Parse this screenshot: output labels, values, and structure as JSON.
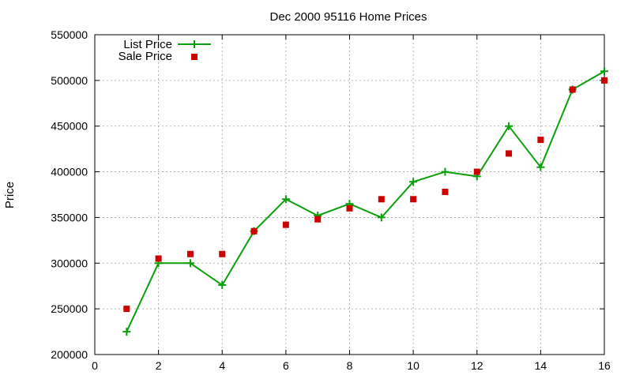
{
  "chart_data": {
    "type": "line",
    "title": "Dec 2000 95116 Home Prices",
    "xlabel": "",
    "ylabel": "Price",
    "xlim": [
      0,
      16
    ],
    "ylim": [
      200000,
      550000
    ],
    "xticks": [
      0,
      2,
      4,
      6,
      8,
      10,
      12,
      14,
      16
    ],
    "yticks": [
      200000,
      250000,
      300000,
      350000,
      400000,
      450000,
      500000,
      550000
    ],
    "grid": true,
    "legend_position": "top-left",
    "series": [
      {
        "name": "List Price",
        "style": "line-plus",
        "color": "#0aa00a",
        "x": [
          1,
          2,
          3,
          4,
          5,
          6,
          7,
          8,
          9,
          10,
          11,
          12,
          13,
          14,
          15,
          16
        ],
        "y": [
          225000,
          300000,
          300000,
          276000,
          335000,
          370000,
          352000,
          365000,
          350000,
          389000,
          400000,
          395000,
          450000,
          405000,
          490000,
          510000
        ]
      },
      {
        "name": "Sale Price",
        "style": "square-points",
        "color": "#cc0000",
        "x": [
          1,
          2,
          3,
          4,
          5,
          6,
          7,
          8,
          9,
          10,
          11,
          12,
          13,
          14,
          15,
          16
        ],
        "y": [
          250000,
          305000,
          310000,
          310000,
          335000,
          342000,
          348000,
          360000,
          370000,
          370000,
          378000,
          400000,
          420000,
          435000,
          490000,
          500000
        ]
      }
    ]
  }
}
